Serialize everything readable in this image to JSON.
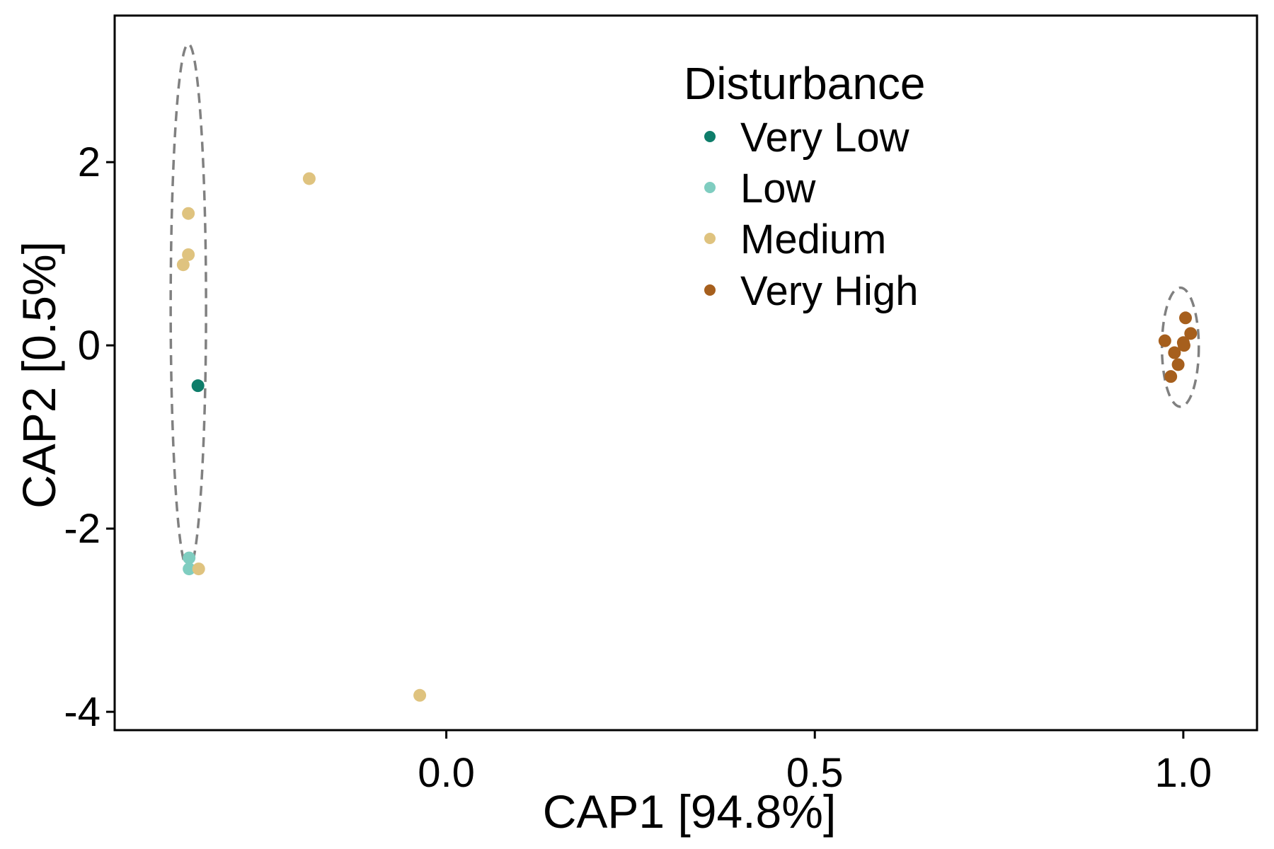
{
  "chart_data": {
    "type": "scatter",
    "title": "",
    "xlabel": "CAP1   [94.8%]",
    "ylabel": "CAP2   [0.5%]",
    "xlim": [
      -0.45,
      1.1
    ],
    "ylim": [
      -4.2,
      3.6
    ],
    "x_ticks": [
      0.0,
      0.5,
      1.0
    ],
    "x_tick_labels": [
      "0.0",
      "0.5",
      "1.0"
    ],
    "y_ticks": [
      -4,
      -2,
      0,
      2
    ],
    "y_tick_labels": [
      "-4",
      "-2",
      "0",
      "2"
    ],
    "legend": {
      "title": "Disturbance",
      "placement": "top-right"
    },
    "series": [
      {
        "name": "Very Low",
        "color": "#0e7d6a",
        "points": [
          [
            -0.337,
            -0.44
          ]
        ]
      },
      {
        "name": "Low",
        "color": "#7fcdc0",
        "points": [
          [
            -0.349,
            -2.32
          ],
          [
            -0.349,
            -2.44
          ]
        ]
      },
      {
        "name": "Medium",
        "color": "#dfc37f",
        "points": [
          [
            -0.35,
            1.44
          ],
          [
            -0.35,
            0.99
          ],
          [
            -0.357,
            0.88
          ],
          [
            -0.336,
            -2.44
          ],
          [
            -0.186,
            1.82
          ],
          [
            -0.036,
            -3.82
          ]
        ]
      },
      {
        "name": "Very High",
        "color": "#a65f1d",
        "points": [
          [
            0.975,
            0.05
          ],
          [
            1.003,
            0.3
          ],
          [
            1.01,
            0.13
          ],
          [
            1.0,
            0.03
          ],
          [
            1.001,
            0.0
          ],
          [
            0.988,
            -0.08
          ],
          [
            0.993,
            -0.21
          ],
          [
            0.983,
            -0.34
          ]
        ]
      }
    ],
    "ellipses": [
      {
        "cx": -0.35,
        "cy": 0.42,
        "rx": 0.024,
        "ry": 2.87,
        "angle": 0
      },
      {
        "cx": 0.996,
        "cy": -0.02,
        "rx": 0.025,
        "ry": 0.65,
        "angle": 0
      }
    ]
  }
}
